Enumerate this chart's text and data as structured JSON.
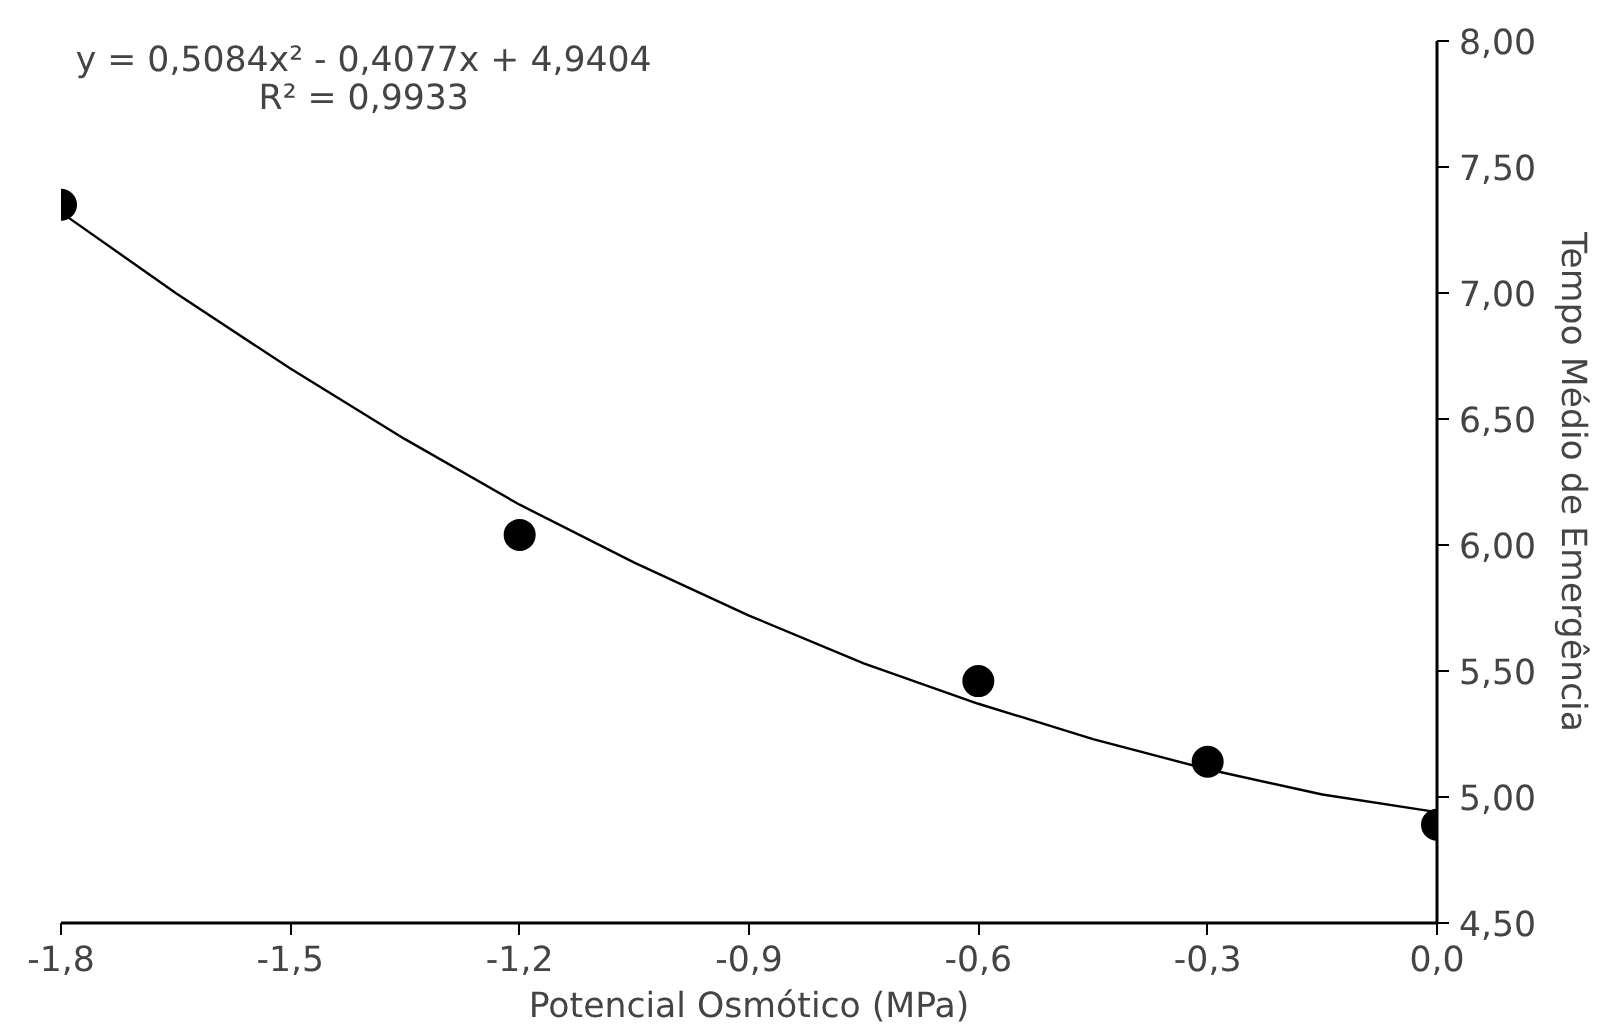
{
  "chart_data": {
    "type": "scatter",
    "xlabel": "Potencial Osmótico (MPa)",
    "ylabel": "Tempo Médio de Emergência",
    "annotations": [
      "y = 0,5084x² - 0,4077x + 4,9404",
      "R² = 0,9933"
    ],
    "x": [
      -1.8,
      -1.2,
      -0.6,
      -0.3,
      0.0
    ],
    "series": [
      {
        "color": "#000000",
        "marker": "circle",
        "values": [
          7.35,
          6.04,
          5.46,
          5.14,
          4.89
        ]
      },
      {
        "type": "line",
        "color": "#000000",
        "marker": "none",
        "line_style": "solid",
        "x": [
          -1.8,
          -1.65,
          -1.5,
          -1.35,
          -1.2,
          -1.05,
          -0.9,
          -0.75,
          -0.6,
          -0.45,
          -0.3,
          -0.15,
          0.0
        ],
        "values": [
          7.32,
          7.0,
          6.7,
          6.42,
          6.16,
          5.93,
          5.72,
          5.53,
          5.37,
          5.23,
          5.11,
          5.01,
          4.94
        ]
      }
    ],
    "xlim": [
      -1.8,
      0.0
    ],
    "ylim": [
      4.5,
      8.0
    ],
    "xticks": [
      {
        "value": -1.8,
        "label": "-1,8"
      },
      {
        "value": -1.5,
        "label": "-1,5"
      },
      {
        "value": -1.2,
        "label": "-1,2"
      },
      {
        "value": -0.9,
        "label": "-0,9"
      },
      {
        "value": -0.6,
        "label": "-0,6"
      },
      {
        "value": -0.3,
        "label": "-0,3"
      },
      {
        "value": 0.0,
        "label": "0,0"
      }
    ],
    "yticks": [
      {
        "value": 4.5,
        "label": "4,50"
      },
      {
        "value": 5.0,
        "label": "5,00"
      },
      {
        "value": 5.5,
        "label": "5,50"
      },
      {
        "value": 6.0,
        "label": "6,00"
      },
      {
        "value": 6.5,
        "label": "6,50"
      },
      {
        "value": 7.0,
        "label": "7,00"
      },
      {
        "value": 7.5,
        "label": "7,50"
      },
      {
        "value": 8.0,
        "label": "8,00"
      }
    ],
    "grid": false
  }
}
